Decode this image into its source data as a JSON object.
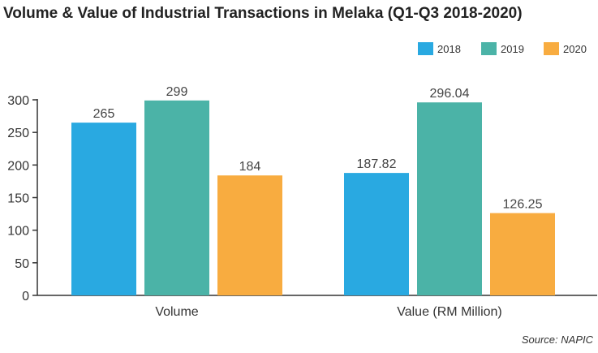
{
  "chart_data": {
    "type": "bar",
    "title": "Volume & Value of Industrial Transactions in Melaka (Q1-Q3 2018-2020)",
    "categories": [
      "Volume",
      "Value (RM Million)"
    ],
    "series": [
      {
        "name": "2018",
        "values": [
          265,
          187.82
        ],
        "labels": [
          "265",
          "187.82"
        ],
        "color": "#29a9e1"
      },
      {
        "name": "2019",
        "values": [
          299,
          296.04
        ],
        "labels": [
          "299",
          "296.04"
        ],
        "color": "#4bb3a7"
      },
      {
        "name": "2020",
        "values": [
          184,
          126.25
        ],
        "labels": [
          "184",
          "126.25"
        ],
        "color": "#f8ac40"
      }
    ],
    "ylim": [
      0,
      300
    ],
    "yticks": [
      "0",
      "50",
      "100",
      "150",
      "200",
      "250",
      "300"
    ],
    "xlabel": "",
    "ylabel": "",
    "grid": false,
    "legend_position": "top-right",
    "source": "Source: NAPIC"
  }
}
